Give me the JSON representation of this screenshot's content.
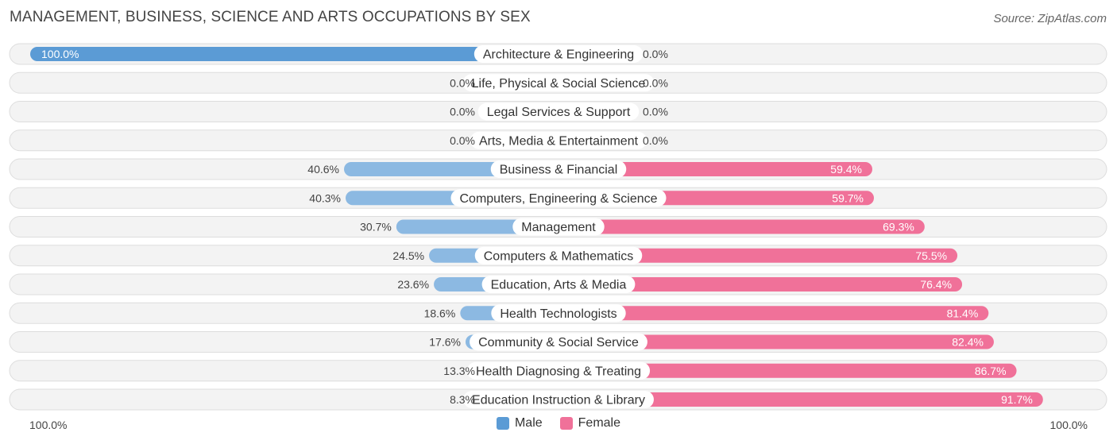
{
  "title": "MANAGEMENT, BUSINESS, SCIENCE AND ARTS OCCUPATIONS BY SEX",
  "source": "Source: ZipAtlas.com",
  "axis": {
    "left_label": "100.0%",
    "right_label": "100.0%"
  },
  "legend": [
    {
      "label": "Male",
      "color": "#5b9bd5"
    },
    {
      "label": "Female",
      "color": "#f07199"
    }
  ],
  "chart_data": {
    "type": "bar",
    "orientation": "horizontal-diverging",
    "xlim": [
      -100,
      100
    ],
    "categories": [
      "Architecture & Engineering",
      "Life, Physical & Social Science",
      "Legal Services & Support",
      "Arts, Media & Entertainment",
      "Business & Financial",
      "Computers, Engineering & Science",
      "Management",
      "Computers & Mathematics",
      "Education, Arts & Media",
      "Health Technologists",
      "Community & Social Service",
      "Health Diagnosing & Treating",
      "Education Instruction & Library"
    ],
    "series": [
      {
        "name": "Male",
        "color": "#5b9bd5",
        "values": [
          100.0,
          0.0,
          0.0,
          0.0,
          40.6,
          40.3,
          30.7,
          24.5,
          23.6,
          18.6,
          17.6,
          13.3,
          8.3
        ],
        "labels": [
          "100.0%",
          "0.0%",
          "0.0%",
          "0.0%",
          "40.6%",
          "40.3%",
          "30.7%",
          "24.5%",
          "23.6%",
          "18.6%",
          "17.6%",
          "13.3%",
          "8.3%"
        ]
      },
      {
        "name": "Female",
        "color": "#f07199",
        "values": [
          0.0,
          0.0,
          0.0,
          0.0,
          59.4,
          59.7,
          69.3,
          75.5,
          76.4,
          81.4,
          82.4,
          86.7,
          91.7
        ],
        "labels": [
          "0.0%",
          "0.0%",
          "0.0%",
          "0.0%",
          "59.4%",
          "59.7%",
          "69.3%",
          "75.5%",
          "76.4%",
          "81.4%",
          "82.4%",
          "86.7%",
          "91.7%"
        ]
      }
    ]
  }
}
